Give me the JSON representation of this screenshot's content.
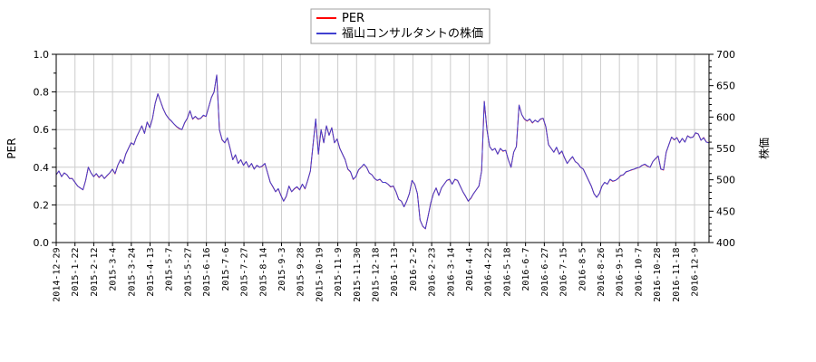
{
  "legend": {
    "entries": [
      {
        "label": "PER",
        "color": "#ff0000"
      },
      {
        "label": "福山コンサルタントの株価",
        "color": "#4040d0"
      }
    ]
  },
  "axes": {
    "left": {
      "label": "PER"
    },
    "right": {
      "label": "株価"
    }
  },
  "chart_data": {
    "type": "line",
    "title": "",
    "grid": true,
    "legend_position": "top-center",
    "x_tick_labels": [
      "2014-12-29",
      "2015-1-22",
      "2015-2-12",
      "2015-3-4",
      "2015-3-24",
      "2015-4-13",
      "2015-5-7",
      "2015-5-27",
      "2015-6-16",
      "2015-7-6",
      "2015-7-27",
      "2015-8-14",
      "2015-9-3",
      "2015-9-28",
      "2015-10-19",
      "2015-11-9",
      "2015-11-30",
      "2015-12-18",
      "2016-1-13",
      "2016-2-2",
      "2016-2-23",
      "2016-3-14",
      "2016-4-4",
      "2016-4-22",
      "2016-5-18",
      "2016-6-7",
      "2016-6-27",
      "2016-7-15",
      "2016-8-5",
      "2016-8-26",
      "2016-9-15",
      "2016-10-7",
      "2016-10-28",
      "2016-11-18",
      "2016-12-9"
    ],
    "y_left": {
      "label": "PER",
      "tick_labels": [
        "0.0",
        "0.2",
        "0.4",
        "0.6",
        "0.8",
        "1.0"
      ],
      "lim": [
        0,
        1
      ],
      "minor_step": 0.1
    },
    "y_right": {
      "label": "株価",
      "tick_labels": [
        "400",
        "450",
        "500",
        "550",
        "600",
        "650",
        "700"
      ],
      "lim": [
        400,
        700
      ],
      "minor_step": 10
    },
    "series": [
      {
        "name": "PER",
        "color": "#ff0000",
        "axis": "left",
        "values": [
          0.36,
          0.38,
          0.35,
          0.37,
          0.36,
          0.34,
          0.34,
          0.32,
          0.3,
          0.29,
          0.28,
          0.33,
          0.4,
          0.37,
          0.35,
          0.365,
          0.345,
          0.36,
          0.34,
          0.355,
          0.37,
          0.39,
          0.365,
          0.41,
          0.44,
          0.42,
          0.47,
          0.5,
          0.53,
          0.52,
          0.56,
          0.59,
          0.62,
          0.58,
          0.64,
          0.61,
          0.66,
          0.74,
          0.79,
          0.75,
          0.71,
          0.68,
          0.66,
          0.645,
          0.63,
          0.615,
          0.605,
          0.6,
          0.635,
          0.66,
          0.7,
          0.655,
          0.67,
          0.655,
          0.66,
          0.675,
          0.67,
          0.72,
          0.77,
          0.8,
          0.89,
          0.6,
          0.545,
          0.53,
          0.555,
          0.5,
          0.44,
          0.465,
          0.42,
          0.44,
          0.41,
          0.43,
          0.4,
          0.42,
          0.39,
          0.41,
          0.4,
          0.405,
          0.42,
          0.37,
          0.32,
          0.295,
          0.27,
          0.285,
          0.25,
          0.22,
          0.245,
          0.3,
          0.27,
          0.285,
          0.295,
          0.28,
          0.31,
          0.285,
          0.33,
          0.38,
          0.52,
          0.655,
          0.47,
          0.6,
          0.53,
          0.62,
          0.57,
          0.61,
          0.53,
          0.55,
          0.5,
          0.47,
          0.44,
          0.39,
          0.375,
          0.335,
          0.35,
          0.385,
          0.4,
          0.415,
          0.4,
          0.37,
          0.36,
          0.34,
          0.33,
          0.335,
          0.32,
          0.32,
          0.31,
          0.295,
          0.3,
          0.27,
          0.23,
          0.22,
          0.19,
          0.22,
          0.26,
          0.33,
          0.31,
          0.26,
          0.12,
          0.086,
          0.073,
          0.14,
          0.21,
          0.26,
          0.29,
          0.25,
          0.29,
          0.31,
          0.33,
          0.335,
          0.31,
          0.335,
          0.33,
          0.3,
          0.27,
          0.245,
          0.22,
          0.235,
          0.26,
          0.28,
          0.3,
          0.38,
          0.75,
          0.6,
          0.51,
          0.49,
          0.5,
          0.47,
          0.5,
          0.485,
          0.49,
          0.44,
          0.4,
          0.48,
          0.51,
          0.73,
          0.68,
          0.655,
          0.645,
          0.655,
          0.635,
          0.65,
          0.64,
          0.655,
          0.66,
          0.615,
          0.52,
          0.5,
          0.48,
          0.505,
          0.47,
          0.485,
          0.45,
          0.42,
          0.44,
          0.455,
          0.43,
          0.42,
          0.4,
          0.39,
          0.36,
          0.33,
          0.3,
          0.26,
          0.24,
          0.26,
          0.3,
          0.32,
          0.31,
          0.335,
          0.325,
          0.33,
          0.34,
          0.355,
          0.36,
          0.375,
          0.38,
          0.385,
          0.39,
          0.395,
          0.4,
          0.41,
          0.415,
          0.405,
          0.4,
          0.43,
          0.445,
          0.46,
          0.39,
          0.385,
          0.48,
          0.52,
          0.56,
          0.545,
          0.558,
          0.53,
          0.553,
          0.534,
          0.567,
          0.558,
          0.56,
          0.582,
          0.577,
          0.543,
          0.558,
          0.534,
          0.53
        ]
      },
      {
        "name": "福山コンサルタントの株価",
        "color": "#4040d0",
        "axis": "right",
        "values": [
          508,
          514,
          505,
          511,
          508,
          502,
          502,
          496,
          490,
          487,
          484,
          499,
          520,
          511,
          505,
          510,
          504,
          508,
          502,
          507,
          511,
          517,
          510,
          523,
          532,
          526,
          541,
          550,
          559,
          556,
          568,
          577,
          586,
          574,
          592,
          583,
          598,
          622,
          637,
          625,
          613,
          604,
          598,
          594,
          589,
          585,
          582,
          580,
          591,
          598,
          610,
          597,
          601,
          597,
          598,
          603,
          601,
          616,
          631,
          640,
          667,
          580,
          564,
          559,
          567,
          550,
          532,
          540,
          526,
          532,
          523,
          529,
          520,
          526,
          517,
          523,
          520,
          522,
          526,
          511,
          496,
          489,
          481,
          486,
          475,
          466,
          474,
          490,
          481,
          486,
          489,
          484,
          493,
          486,
          499,
          514,
          556,
          597,
          541,
          580,
          559,
          586,
          571,
          583,
          559,
          565,
          550,
          541,
          532,
          517,
          513,
          501,
          505,
          516,
          520,
          525,
          520,
          511,
          508,
          502,
          499,
          501,
          496,
          496,
          493,
          489,
          490,
          481,
          469,
          466,
          457,
          466,
          478,
          499,
          493,
          478,
          436,
          426,
          422,
          442,
          463,
          478,
          487,
          475,
          487,
          493,
          499,
          501,
          493,
          501,
          499,
          490,
          481,
          474,
          466,
          471,
          478,
          484,
          490,
          514,
          625,
          580,
          553,
          547,
          550,
          541,
          550,
          546,
          547,
          532,
          520,
          544,
          553,
          619,
          604,
          597,
          594,
          597,
          591,
          595,
          592,
          597,
          598,
          585,
          556,
          550,
          544,
          552,
          541,
          546,
          535,
          526,
          532,
          537,
          529,
          526,
          520,
          517,
          508,
          499,
          490,
          478,
          472,
          478,
          490,
          496,
          493,
          501,
          498,
          499,
          502,
          507,
          508,
          513,
          514,
          516,
          517,
          519,
          520,
          523,
          525,
          522,
          520,
          529,
          534,
          538,
          517,
          516,
          544,
          556,
          568,
          564,
          567,
          559,
          566,
          560,
          570,
          567,
          568,
          575,
          573,
          563,
          567,
          560,
          559
        ]
      }
    ]
  },
  "colors": {
    "grid": "#cccccc",
    "axis": "#000000",
    "legend_border": "#a0a0a0",
    "background": "#ffffff"
  }
}
